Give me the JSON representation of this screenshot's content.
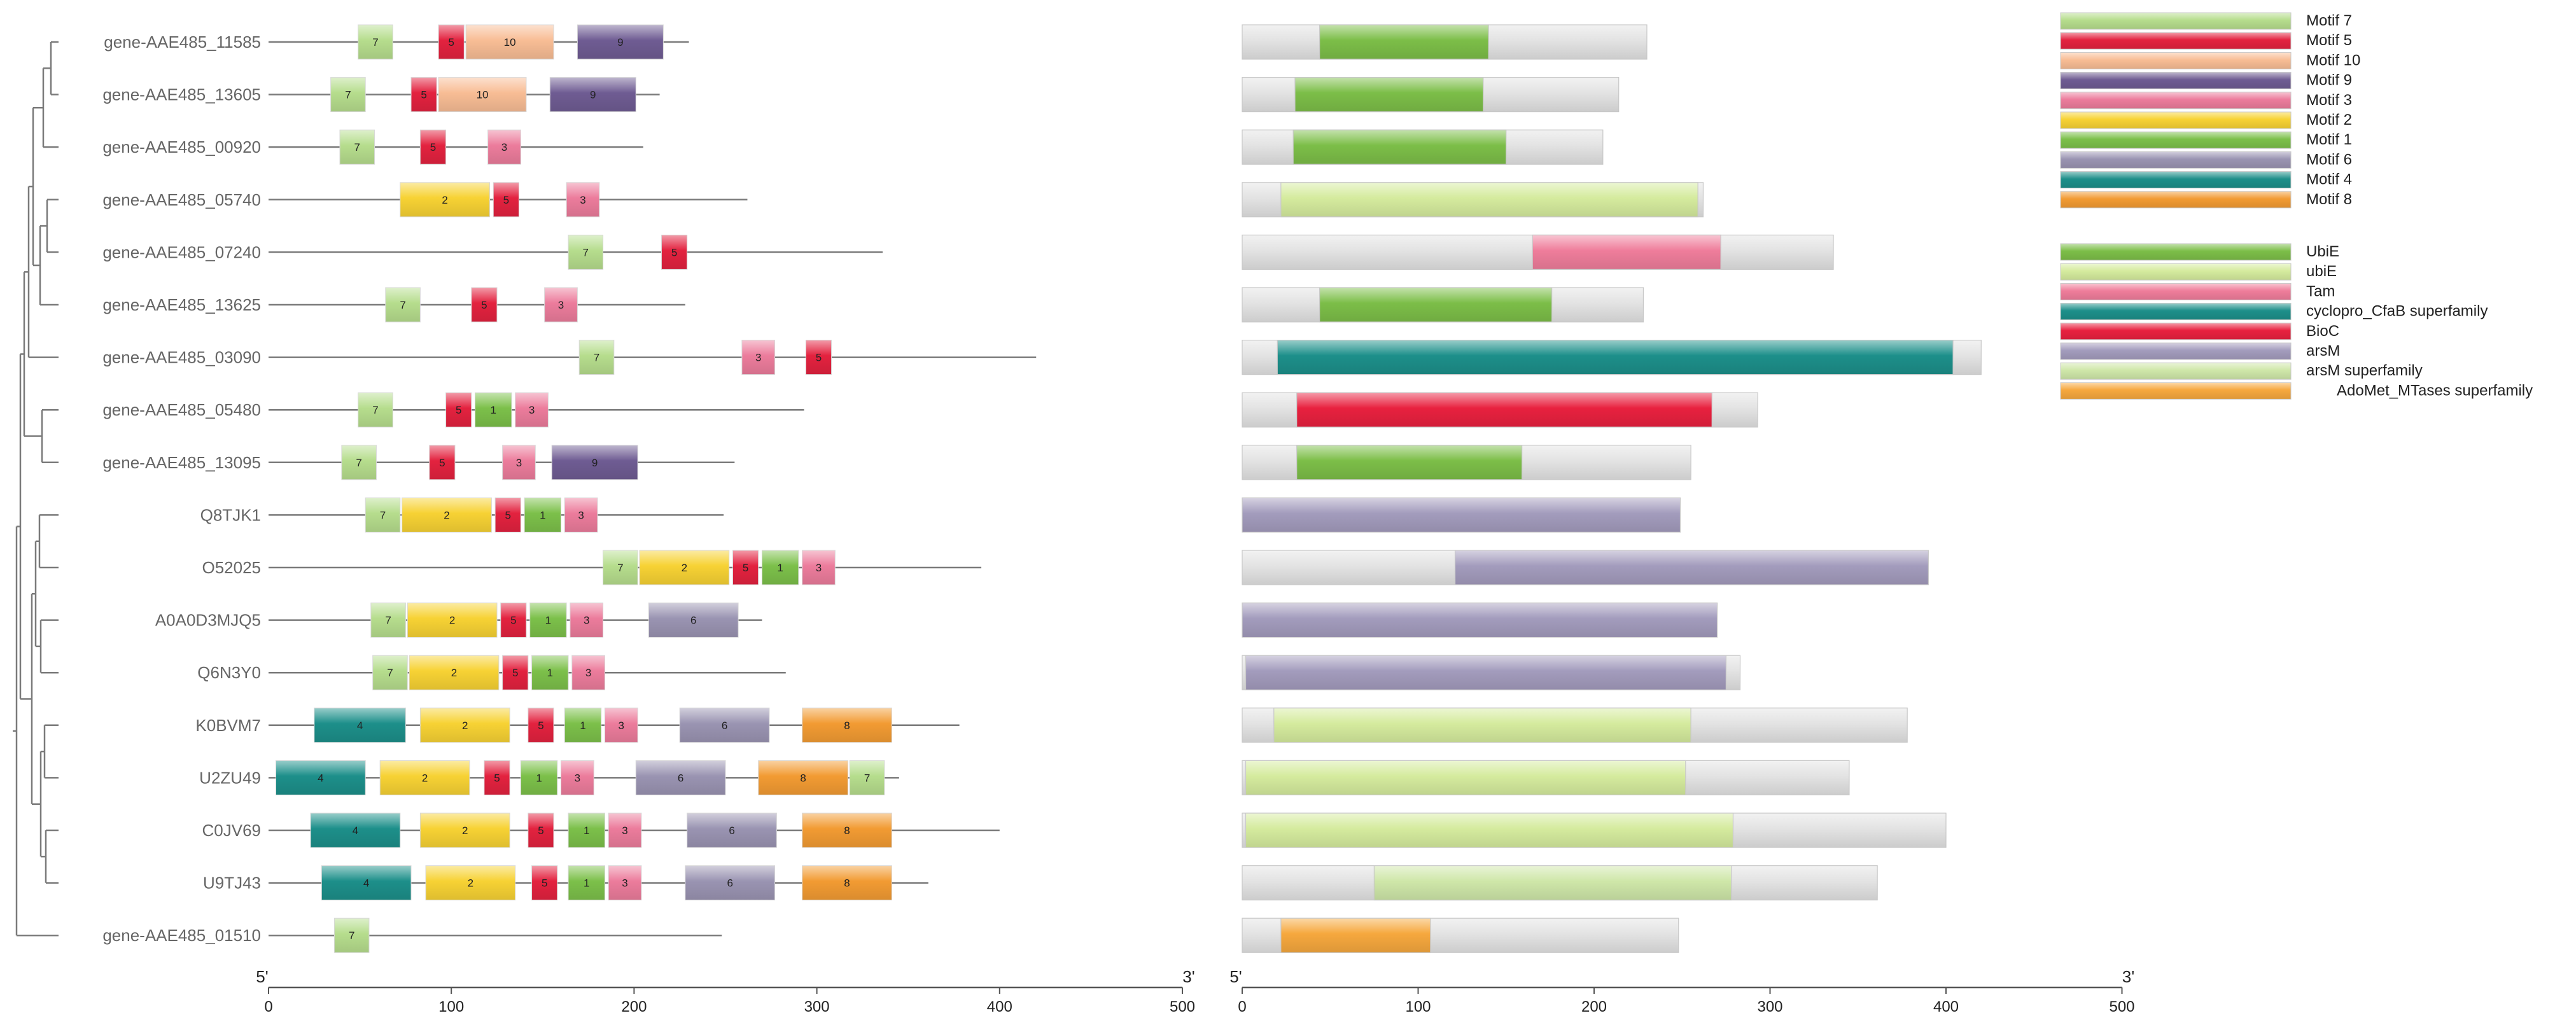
{
  "colors": {
    "m1": "#7cc04a",
    "m2": "#f7d234",
    "m3": "#ec7c9c",
    "m4": "#1d8f8a",
    "m5": "#e3223f",
    "m6": "#9a94b2",
    "m7": "#b6dd8d",
    "m8": "#f29b33",
    "m9": "#6f5c93",
    "m10": "#f8bd95",
    "UbiE": "#7cbe48",
    "ubiE": "#d5eb9e",
    "Tam": "#ef7d9b",
    "cyclopro": "#1d8f8a",
    "BioC": "#e8213f",
    "arsM": "#a39cbd",
    "arsMsf": "#cfe7a9",
    "AdoMet": "#f6a83e",
    "grey": "#e3e3e3",
    "line": "#7a7a7a",
    "text": "#666666"
  },
  "genes": [
    {
      "name": "gene-AAE485_11585",
      "len": 230,
      "motifs": [
        [
          7,
          49,
          68
        ],
        [
          5,
          93,
          107
        ],
        [
          10,
          108,
          156
        ],
        [
          9,
          169,
          216
        ]
      ],
      "domains": [
        [
          "grey",
          0,
          230
        ],
        [
          "UbiE",
          44,
          140
        ]
      ]
    },
    {
      "name": "gene-AAE485_13605",
      "len": 214,
      "motifs": [
        [
          7,
          34,
          53
        ],
        [
          5,
          78,
          92
        ],
        [
          10,
          93,
          141
        ],
        [
          9,
          154,
          201
        ]
      ],
      "domains": [
        [
          "grey",
          0,
          214
        ],
        [
          "UbiE",
          30,
          137
        ]
      ]
    },
    {
      "name": "gene-AAE485_00920",
      "len": 205,
      "motifs": [
        [
          7,
          39,
          58
        ],
        [
          5,
          83,
          97
        ],
        [
          3,
          120,
          138
        ]
      ],
      "domains": [
        [
          "grey",
          0,
          205
        ],
        [
          "UbiE",
          29,
          150
        ]
      ]
    },
    {
      "name": "gene-AAE485_05740",
      "len": 262,
      "motifs": [
        [
          2,
          72,
          121
        ],
        [
          5,
          123,
          137
        ],
        [
          3,
          163,
          181
        ]
      ],
      "domains": [
        [
          "grey",
          0,
          262
        ],
        [
          "ubiE",
          22,
          259
        ]
      ]
    },
    {
      "name": "gene-AAE485_07240",
      "len": 336,
      "motifs": [
        [
          7,
          164,
          183
        ],
        [
          5,
          215,
          229
        ]
      ],
      "domains": [
        [
          "grey",
          0,
          336
        ],
        [
          "Tam",
          165,
          272
        ]
      ]
    },
    {
      "name": "gene-AAE485_13625",
      "len": 228,
      "motifs": [
        [
          7,
          64,
          83
        ],
        [
          5,
          111,
          125
        ],
        [
          3,
          151,
          169
        ]
      ],
      "domains": [
        [
          "grey",
          0,
          228
        ],
        [
          "UbiE",
          44,
          176
        ]
      ]
    },
    {
      "name": "gene-AAE485_03090",
      "len": 420,
      "motifs": [
        [
          7,
          170,
          189
        ],
        [
          3,
          259,
          277
        ],
        [
          5,
          294,
          308
        ]
      ],
      "domains": [
        [
          "grey",
          0,
          420
        ],
        [
          "cyclopro",
          20,
          404
        ]
      ]
    },
    {
      "name": "gene-AAE485_05480",
      "len": 293,
      "motifs": [
        [
          7,
          49,
          68
        ],
        [
          5,
          97,
          111
        ],
        [
          1,
          113,
          133
        ],
        [
          3,
          135,
          153
        ]
      ],
      "domains": [
        [
          "grey",
          0,
          293
        ],
        [
          "BioC",
          31,
          267
        ]
      ]
    },
    {
      "name": "gene-AAE485_13095",
      "len": 255,
      "motifs": [
        [
          7,
          40,
          59
        ],
        [
          5,
          88,
          102
        ],
        [
          3,
          128,
          146
        ],
        [
          9,
          155,
          202
        ]
      ],
      "domains": [
        [
          "grey",
          0,
          255
        ],
        [
          "UbiE",
          31,
          159
        ]
      ]
    },
    {
      "name": "Q8TJK1",
      "len": 249,
      "motifs": [
        [
          7,
          53,
          72
        ],
        [
          2,
          73,
          122
        ],
        [
          5,
          124,
          138
        ],
        [
          1,
          140,
          160
        ],
        [
          3,
          162,
          180
        ]
      ],
      "domains": [
        [
          "arsM",
          0,
          249
        ]
      ]
    },
    {
      "name": "O52025",
      "len": 390,
      "motifs": [
        [
          7,
          183,
          202
        ],
        [
          2,
          203,
          252
        ],
        [
          5,
          254,
          268
        ],
        [
          1,
          270,
          290
        ],
        [
          3,
          292,
          310
        ]
      ],
      "domains": [
        [
          "grey",
          0,
          121
        ],
        [
          "arsM",
          121,
          390
        ]
      ]
    },
    {
      "name": "A0A0D3MJQ5",
      "len": 270,
      "motifs": [
        [
          7,
          56,
          75
        ],
        [
          2,
          76,
          125
        ],
        [
          5,
          127,
          141
        ],
        [
          1,
          143,
          163
        ],
        [
          3,
          165,
          183
        ],
        [
          6,
          208,
          257
        ]
      ],
      "domains": [
        [
          "arsM",
          0,
          270
        ]
      ]
    },
    {
      "name": "Q6N3Y0",
      "len": 283,
      "motifs": [
        [
          7,
          57,
          76
        ],
        [
          2,
          77,
          126
        ],
        [
          5,
          128,
          142
        ],
        [
          1,
          144,
          164
        ],
        [
          3,
          166,
          184
        ]
      ],
      "domains": [
        [
          "grey",
          0,
          283
        ],
        [
          "arsM",
          2,
          275
        ]
      ]
    },
    {
      "name": "K0BVM7",
      "len": 378,
      "motifs": [
        [
          4,
          25,
          75
        ],
        [
          2,
          83,
          132
        ],
        [
          5,
          142,
          156
        ],
        [
          1,
          162,
          182
        ],
        [
          3,
          184,
          202
        ],
        [
          6,
          225,
          274
        ],
        [
          8,
          292,
          341
        ]
      ],
      "domains": [
        [
          "grey",
          0,
          378
        ],
        [
          "ubiE",
          18,
          255
        ]
      ]
    },
    {
      "name": "U2ZU49",
      "len": 345,
      "motifs": [
        [
          4,
          4,
          53
        ],
        [
          2,
          61,
          110
        ],
        [
          5,
          118,
          132
        ],
        [
          1,
          138,
          158
        ],
        [
          3,
          160,
          178
        ],
        [
          6,
          201,
          250
        ],
        [
          8,
          268,
          317
        ],
        [
          7,
          318,
          337
        ]
      ],
      "domains": [
        [
          "grey",
          0,
          345
        ],
        [
          "ubiE",
          2,
          252
        ]
      ]
    },
    {
      "name": "C0JV69",
      "len": 400,
      "motifs": [
        [
          4,
          23,
          72
        ],
        [
          2,
          83,
          132
        ],
        [
          5,
          142,
          156
        ],
        [
          1,
          164,
          184
        ],
        [
          3,
          186,
          204
        ],
        [
          6,
          229,
          278
        ],
        [
          8,
          292,
          341
        ]
      ],
      "domains": [
        [
          "grey",
          0,
          400
        ],
        [
          "ubiE",
          2,
          279
        ]
      ]
    },
    {
      "name": "U9TJ43",
      "len": 361,
      "motifs": [
        [
          4,
          29,
          78
        ],
        [
          2,
          86,
          135
        ],
        [
          5,
          144,
          158
        ],
        [
          1,
          164,
          184
        ],
        [
          3,
          186,
          204
        ],
        [
          6,
          228,
          277
        ],
        [
          8,
          292,
          341
        ]
      ],
      "domains": [
        [
          "grey",
          0,
          361
        ],
        [
          "arsMsf",
          75,
          278
        ]
      ]
    },
    {
      "name": "gene-AAE485_01510",
      "len": 248,
      "motifs": [
        [
          7,
          36,
          55
        ]
      ],
      "domains": [
        [
          "grey",
          0,
          248
        ],
        [
          "AdoMet",
          22,
          107
        ]
      ]
    }
  ],
  "motif_legend": [
    {
      "label": "Motif 7",
      "key": "m7"
    },
    {
      "label": "Motif 5",
      "key": "m5"
    },
    {
      "label": "Motif 10",
      "key": "m10"
    },
    {
      "label": "Motif 9",
      "key": "m9"
    },
    {
      "label": "Motif 3",
      "key": "m3"
    },
    {
      "label": "Motif 2",
      "key": "m2"
    },
    {
      "label": "Motif 1",
      "key": "m1"
    },
    {
      "label": "Motif 6",
      "key": "m6"
    },
    {
      "label": "Motif 4",
      "key": "m4"
    },
    {
      "label": "Motif 8",
      "key": "m8"
    }
  ],
  "domain_legend": [
    {
      "label": "UbiE",
      "key": "UbiE"
    },
    {
      "label": "ubiE",
      "key": "ubiE"
    },
    {
      "label": "Tam",
      "key": "Tam"
    },
    {
      "label": "cyclopro_CfaB superfamily",
      "key": "cyclopro"
    },
    {
      "label": "BioC",
      "key": "BioC"
    },
    {
      "label": "arsM",
      "key": "arsM"
    },
    {
      "label": "arsM superfamily",
      "key": "arsMsf"
    },
    {
      "label": "AdoMet_MTases superfamily",
      "key": "AdoMet"
    }
  ],
  "axes": {
    "left_ticks": [
      "0",
      "100",
      "200",
      "300",
      "400",
      "500"
    ],
    "right_ticks": [
      "0",
      "100",
      "200",
      "300",
      "400",
      "500"
    ],
    "five_prime": "5'",
    "three_prime": "3'"
  }
}
